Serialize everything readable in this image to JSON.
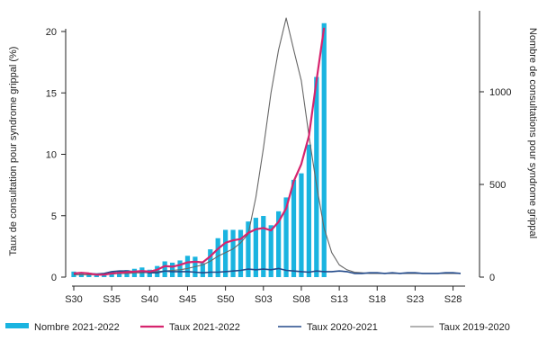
{
  "chart_data": {
    "type": "bar+line",
    "ylabel_left": "Taux de consultation pour syndrome grippal (%)",
    "ylabel_right": "Nombre de consultations pour syndrome grippal",
    "ylim_left": [
      0,
      22
    ],
    "ylim_right": [
      0,
      1500
    ],
    "yticks_left": [
      0,
      5,
      10,
      15,
      20
    ],
    "yticks_right": [
      0,
      500,
      1000
    ],
    "x_weeks": [
      "S30",
      "S31",
      "S32",
      "S33",
      "S34",
      "S35",
      "S36",
      "S37",
      "S38",
      "S39",
      "S40",
      "S41",
      "S42",
      "S43",
      "S44",
      "S45",
      "S46",
      "S47",
      "S48",
      "S49",
      "S50",
      "S51",
      "S52",
      "S01",
      "S02",
      "S03",
      "S04",
      "S05",
      "S06",
      "S07",
      "S08",
      "S09",
      "S10",
      "S11",
      "S12",
      "S13",
      "S14",
      "S15",
      "S16",
      "S17",
      "S18",
      "S19",
      "S20",
      "S21",
      "S22",
      "S23",
      "S24",
      "S25",
      "S26",
      "S27",
      "S28",
      "S29"
    ],
    "x_tick_labels": [
      "S30",
      "S35",
      "S40",
      "S45",
      "S50",
      "S03",
      "S08",
      "S13",
      "S18",
      "S23",
      "S28"
    ],
    "series": [
      {
        "name": "Nombre 2021-2022",
        "kind": "bar",
        "axis": "right",
        "color": "#1ab4e0",
        "values": [
          30,
          25,
          20,
          18,
          22,
          28,
          32,
          38,
          45,
          52,
          40,
          60,
          85,
          78,
          90,
          115,
          110,
          75,
          150,
          210,
          255,
          255,
          255,
          300,
          320,
          330,
          280,
          355,
          430,
          525,
          560,
          715,
          1080,
          1370,
          null,
          null,
          null,
          null,
          null,
          null,
          null,
          null,
          null,
          null,
          null,
          null,
          null,
          null,
          null,
          null,
          null,
          null
        ]
      },
      {
        "name": "Taux 2021-2022",
        "kind": "line",
        "axis": "left",
        "color": "#d6246e",
        "values": [
          0.3,
          0.35,
          0.3,
          0.2,
          0.2,
          0.3,
          0.35,
          0.4,
          0.45,
          0.5,
          0.45,
          0.6,
          0.9,
          0.85,
          1.0,
          1.2,
          1.25,
          1.2,
          1.7,
          2.3,
          2.8,
          3.0,
          3.1,
          3.6,
          3.9,
          4.0,
          3.8,
          4.5,
          5.6,
          7.8,
          9.2,
          11.5,
          16.0,
          20.3,
          null,
          null,
          null,
          null,
          null,
          null,
          null,
          null,
          null,
          null,
          null,
          null,
          null,
          null,
          null,
          null,
          null,
          null
        ]
      },
      {
        "name": "Taux 2020-2021",
        "kind": "line",
        "axis": "left",
        "color": "#234a8a",
        "values": [
          0.25,
          0.35,
          0.3,
          0.25,
          0.3,
          0.45,
          0.5,
          0.5,
          0.45,
          0.45,
          0.35,
          0.35,
          0.5,
          0.45,
          0.45,
          0.45,
          0.4,
          0.35,
          0.4,
          0.4,
          0.45,
          0.5,
          0.55,
          0.65,
          0.6,
          0.65,
          0.6,
          0.7,
          0.55,
          0.5,
          0.45,
          0.4,
          0.5,
          0.45,
          0.45,
          0.5,
          0.45,
          0.3,
          0.3,
          0.35,
          0.35,
          0.3,
          0.35,
          0.3,
          0.35,
          0.35,
          0.3,
          0.3,
          0.3,
          0.35,
          0.35,
          0.3
        ]
      },
      {
        "name": "Taux 2019-2020",
        "kind": "line",
        "axis": "left",
        "color": "#666666",
        "values": [
          0.2,
          0.2,
          0.2,
          0.2,
          0.25,
          0.25,
          0.3,
          0.3,
          0.35,
          0.35,
          0.4,
          0.45,
          0.5,
          0.55,
          0.6,
          0.7,
          0.85,
          1.0,
          1.3,
          1.7,
          2.0,
          2.3,
          2.8,
          3.5,
          6.5,
          10.5,
          15.0,
          18.5,
          21.1,
          18.5,
          16.0,
          11.5,
          7.5,
          4.0,
          2.0,
          1.0,
          0.6,
          0.4,
          0.35,
          0.3,
          0.3,
          0.3,
          0.3,
          0.3,
          0.3,
          0.3,
          0.3,
          0.3,
          0.3,
          0.3,
          0.3,
          0.3
        ]
      }
    ],
    "legend_position": "bottom"
  }
}
